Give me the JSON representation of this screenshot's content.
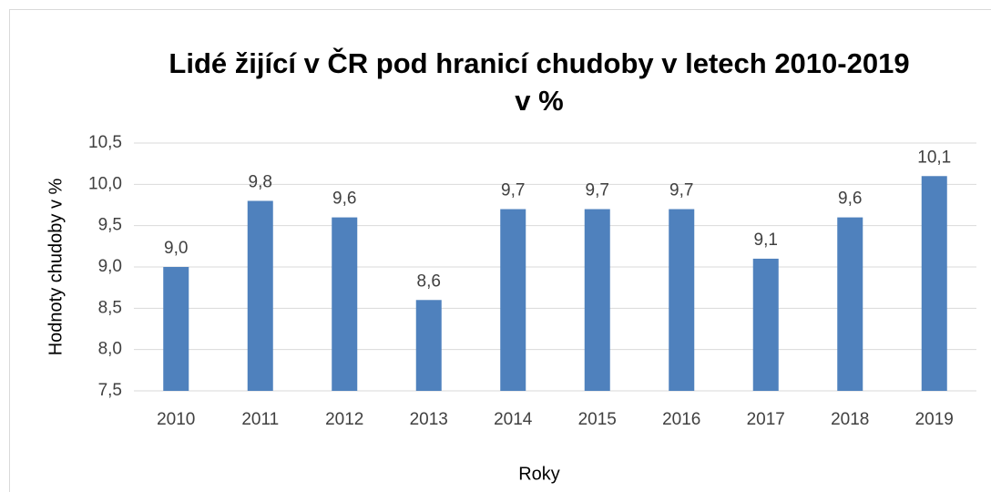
{
  "chart_data": {
    "type": "bar",
    "title": [
      "Lidé žijící v ČR pod hranicí chudoby v letech 2010-2019",
      "v %"
    ],
    "x_label": "Roky",
    "y_label": "Hodnoty chudoby v %",
    "categories": [
      "2010",
      "2011",
      "2012",
      "2013",
      "2014",
      "2015",
      "2016",
      "2017",
      "2018",
      "2019"
    ],
    "values": [
      9.0,
      9.8,
      9.6,
      8.6,
      9.7,
      9.7,
      9.7,
      9.1,
      9.6,
      10.1
    ],
    "value_labels": [
      "9,0",
      "9,8",
      "9,6",
      "8,6",
      "9,7",
      "9,7",
      "9,7",
      "9,1",
      "9,6",
      "10,1"
    ],
    "color": "#4f81bd",
    "ylim": [
      7.5,
      10.5
    ],
    "yticks": [
      {
        "value": 7.5,
        "label": "7,5"
      },
      {
        "value": 8.0,
        "label": "8,0"
      },
      {
        "value": 8.5,
        "label": "8,5"
      },
      {
        "value": 9.0,
        "label": "9,0"
      },
      {
        "value": 9.5,
        "label": "9,5"
      },
      {
        "value": 10.0,
        "label": "10,0"
      },
      {
        "value": 10.5,
        "label": "10,5"
      }
    ],
    "grid": true
  }
}
